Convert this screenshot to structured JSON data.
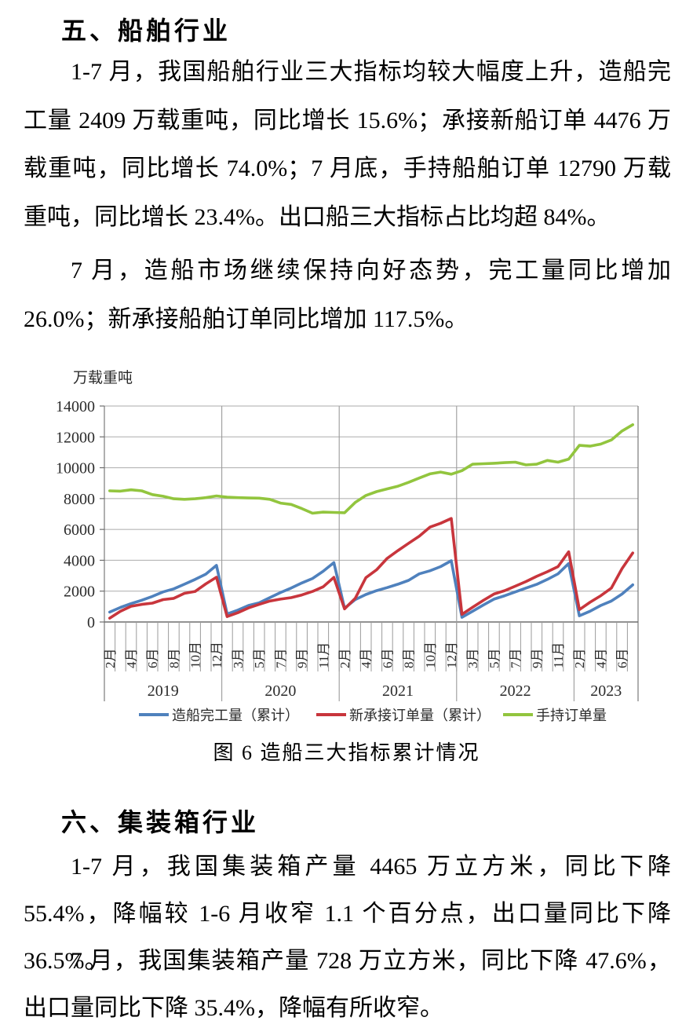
{
  "page": {
    "section5_heading": "五、船舶行业",
    "para1": "1-7 月，我国船舶行业三大指标均较大幅度上升，造船完工量 2409 万载重吨，同比增长 15.6%；承接新船订单 4476 万载重吨，同比增长 74.0%；7 月底，手持船舶订单 12790 万载重吨，同比增长 23.4%。出口船三大指标占比均超 84%。",
    "para2": "7 月，造船市场继续保持向好态势，完工量同比增加 26.0%；新承接船舶订单同比增加 117.5%。",
    "figure_caption": "图 6 造船三大指标累计情况",
    "section6_heading": "六、集装箱行业",
    "para3": "1-7 月，我国集装箱产量 4465 万立方米，同比下降 55.4%，降幅较 1-6 月收窄 1.1 个百分点，出口量同比下降 36.5%。",
    "para4": "7 月，我国集装箱产量 728 万立方米，同比下降 47.6%，出口量同比下降 35.4%，降幅有所收窄。"
  },
  "chart_data": {
    "type": "line",
    "title": "",
    "unit_label": "万载重吨",
    "ylim": [
      0,
      14000
    ],
    "ytick_step": 2000,
    "grid": true,
    "legend_position": "bottom",
    "colors": {
      "completions": "#4F81BD",
      "new_orders": "#C8353C",
      "holdings": "#92C53E",
      "gridline": "#ABABAB",
      "axis": "#6E6E6E",
      "tick": "#9B9B9B"
    },
    "years": [
      {
        "label": "2019",
        "ticks": [
          "2月",
          "",
          "4月",
          "",
          "6月",
          "",
          "8月",
          "",
          "10月",
          "",
          "12月"
        ]
      },
      {
        "label": "2020",
        "ticks": [
          "",
          "3月",
          "",
          "5月",
          "",
          "7月",
          "",
          "9月",
          "",
          "11月",
          ""
        ]
      },
      {
        "label": "2021",
        "ticks": [
          "2月",
          "",
          "4月",
          "",
          "6月",
          "",
          "8月",
          "",
          "10月",
          "",
          "12月"
        ]
      },
      {
        "label": "2022",
        "ticks": [
          "",
          "3月",
          "",
          "5月",
          "",
          "7月",
          "",
          "9月",
          "",
          "11月",
          ""
        ]
      },
      {
        "label": "2023",
        "ticks": [
          "2月",
          "",
          "4月",
          "",
          "6月",
          ""
        ]
      }
    ],
    "series": [
      {
        "name": "造船完工量（累计）",
        "color_key": "completions",
        "values": [
          640,
          940,
          1190,
          1410,
          1660,
          1950,
          2150,
          2450,
          2760,
          3100,
          3670,
          520,
          770,
          1070,
          1240,
          1580,
          1910,
          2200,
          2530,
          2820,
          3290,
          3850,
          890,
          1450,
          1780,
          2030,
          2230,
          2450,
          2700,
          3120,
          3320,
          3590,
          3970,
          300,
          700,
          1100,
          1480,
          1700,
          1950,
          2200,
          2440,
          2760,
          3120,
          3790,
          400,
          700,
          1070,
          1360,
          1810,
          2409
        ]
      },
      {
        "name": "新承接订单量（累计）",
        "color_key": "new_orders",
        "values": [
          250,
          690,
          1020,
          1140,
          1220,
          1450,
          1530,
          1860,
          1980,
          2470,
          2900,
          350,
          600,
          910,
          1140,
          1360,
          1480,
          1580,
          1750,
          1980,
          2280,
          2890,
          850,
          1530,
          2870,
          3380,
          4130,
          4630,
          5100,
          5560,
          6150,
          6400,
          6710,
          500,
          950,
          1400,
          1810,
          2030,
          2320,
          2620,
          2960,
          3260,
          3590,
          4550,
          800,
          1280,
          1700,
          2200,
          3460,
          4476
        ]
      },
      {
        "name": "手持订单量",
        "color_key": "holdings",
        "values": [
          8500,
          8480,
          8570,
          8500,
          8260,
          8150,
          7990,
          7950,
          7990,
          8060,
          8170,
          8090,
          8060,
          8040,
          8030,
          7950,
          7710,
          7620,
          7350,
          7050,
          7120,
          7100,
          7080,
          7750,
          8200,
          8450,
          8630,
          8800,
          9050,
          9330,
          9600,
          9720,
          9580,
          9810,
          10230,
          10260,
          10290,
          10330,
          10360,
          10180,
          10230,
          10470,
          10360,
          10560,
          11450,
          11400,
          11530,
          11800,
          12380,
          12790
        ]
      }
    ],
    "key_values": {
      "jul2023_completions": 2409,
      "jul2023_new_orders": 4476,
      "jul2023_holdings": 12790
    }
  }
}
